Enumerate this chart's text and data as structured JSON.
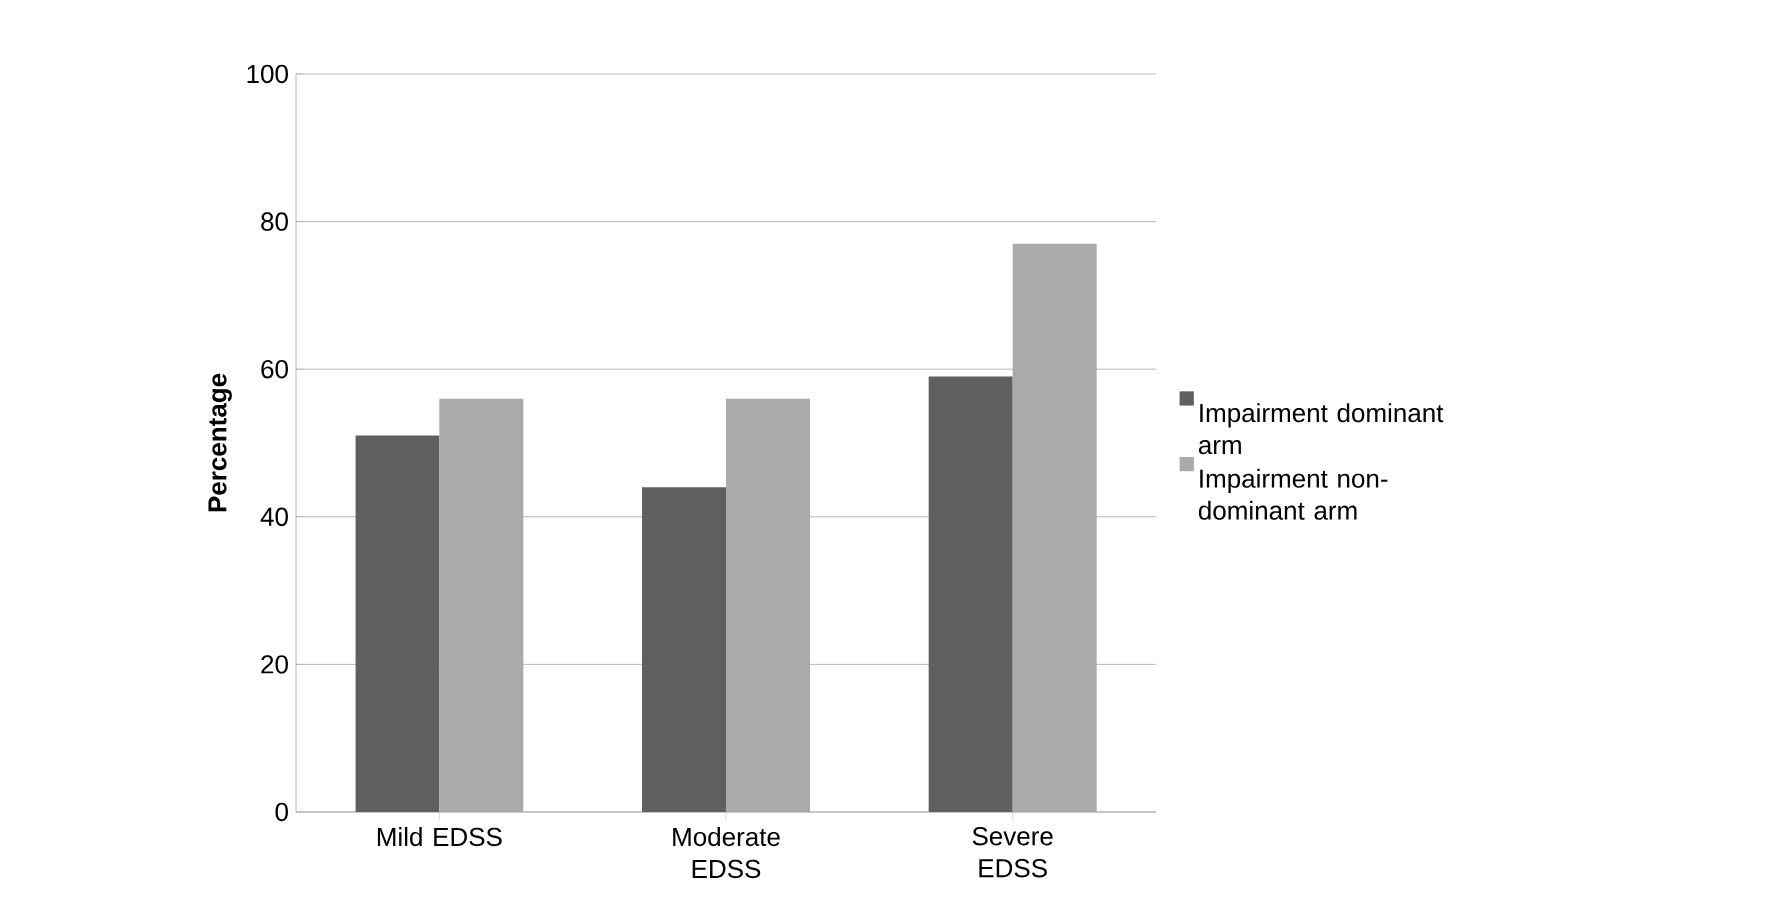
{
  "chart_data": {
    "type": "bar",
    "ylabel": "Percentage",
    "categories": [
      "Mild EDSS",
      "Moderate EDSS",
      "Severe EDSS"
    ],
    "series": [
      {
        "name": "Impairment dominant arm",
        "color": "#5f5f5f",
        "values": [
          51,
          44,
          59
        ]
      },
      {
        "name": "Impairment non-dominant arm",
        "color": "#aaaaaa",
        "values": [
          56,
          56,
          77
        ]
      }
    ],
    "ylim": [
      0,
      100
    ],
    "yticks": [
      0,
      20,
      40,
      60,
      80,
      100
    ],
    "grid": "y",
    "legend": "right"
  }
}
